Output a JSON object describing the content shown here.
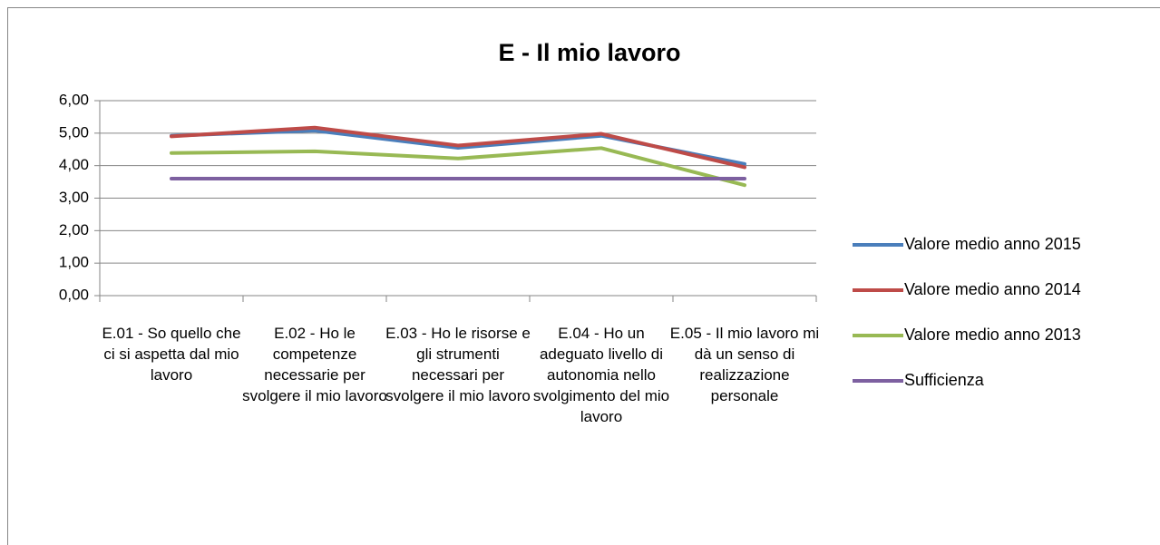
{
  "chart_data": {
    "type": "line",
    "title": "E - Il mio lavoro",
    "categories": [
      "E.01 - So quello che ci si aspetta dal mio lavoro",
      "E.02 - Ho le competenze necessarie per svolgere il mio lavoro",
      "E.03 - Ho le risorse e gli strumenti necessari per svolgere il mio lavoro",
      "E.04 - Ho un adeguato livello di autonomia nello svolgimento del mio lavoro",
      "E.05 - Il mio lavoro mi dà un senso di realizzazione personale"
    ],
    "series": [
      {
        "name": "Valore medio anno 2015",
        "color": "#4a7ebb",
        "values": [
          4.92,
          5.08,
          4.55,
          4.92,
          4.05
        ]
      },
      {
        "name": "Valore medio anno 2014",
        "color": "#be4b48",
        "values": [
          4.9,
          5.17,
          4.62,
          4.98,
          3.95
        ]
      },
      {
        "name": "Valore medio anno 2013",
        "color": "#98b954",
        "values": [
          4.39,
          4.44,
          4.22,
          4.54,
          3.4
        ]
      },
      {
        "name": "Sufficienza",
        "color": "#7d60a0",
        "values": [
          3.6,
          3.6,
          3.6,
          3.6,
          3.6
        ]
      }
    ],
    "ylim": [
      0,
      6
    ],
    "yticks": [
      {
        "value": 0,
        "label": "0,00"
      },
      {
        "value": 1,
        "label": "1,00"
      },
      {
        "value": 2,
        "label": "2,00"
      },
      {
        "value": 3,
        "label": "3,00"
      },
      {
        "value": 4,
        "label": "4,00"
      },
      {
        "value": 5,
        "label": "5,00"
      },
      {
        "value": 6,
        "label": "6,00"
      }
    ],
    "grid": true,
    "legend": "right"
  }
}
